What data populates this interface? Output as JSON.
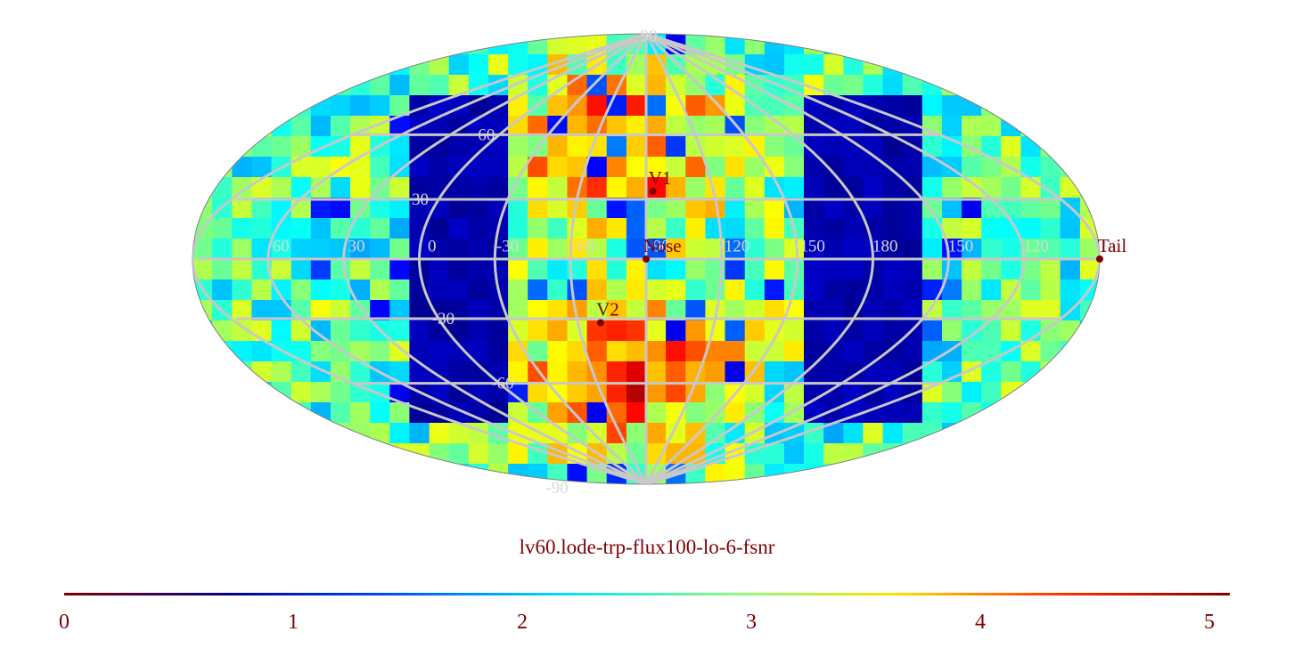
{
  "map": {
    "projection": "Mollweide (Hammer-Aitoff) all-sky",
    "colormap": "jet",
    "value_range": [
      0,
      5
    ],
    "latitude_labels": [
      "90",
      "60",
      "30",
      "-30",
      "-60",
      "-90"
    ],
    "longitude_labels": [
      "60",
      "30",
      "0",
      "-30",
      "-60",
      "-90",
      "-120",
      "-150",
      "180",
      "150",
      "120",
      "90"
    ],
    "markers": [
      {
        "label": "V1",
        "lon": -93,
        "lat": 34
      },
      {
        "label": "Nose",
        "lon": -90,
        "lat": 0
      },
      {
        "label": "V2",
        "lon": -70,
        "lat": -32
      },
      {
        "label": "Tail",
        "lon": 90,
        "lat": 0
      }
    ]
  },
  "caption": "lv60.lode-trp-flux100-lo-6-fsnr",
  "colorbar": {
    "ticks": [
      "0",
      "1",
      "2",
      "3",
      "4",
      "5"
    ],
    "colors": [
      "#800000",
      "#000090",
      "#0050ff",
      "#00dfff",
      "#80ff80",
      "#ffdf00",
      "#ff3000",
      "#800000"
    ]
  },
  "colors": {
    "grid": "#c8c8c8",
    "marker": "#800000",
    "label": "#800000",
    "low_region": "#000080"
  }
}
